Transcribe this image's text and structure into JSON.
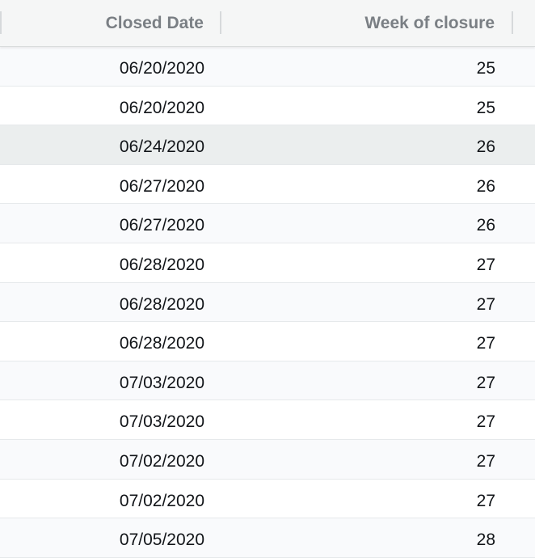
{
  "table": {
    "columns": [
      {
        "label": "Closed Date"
      },
      {
        "label": "Week of closure"
      }
    ],
    "rows": [
      {
        "closed_date": "06/20/2020",
        "week": "25",
        "style": "alt"
      },
      {
        "closed_date": "06/20/2020",
        "week": "25",
        "style": "plain"
      },
      {
        "closed_date": "06/24/2020",
        "week": "26",
        "style": "hover"
      },
      {
        "closed_date": "06/27/2020",
        "week": "26",
        "style": "plain"
      },
      {
        "closed_date": "06/27/2020",
        "week": "26",
        "style": "alt"
      },
      {
        "closed_date": "06/28/2020",
        "week": "27",
        "style": "plain"
      },
      {
        "closed_date": "06/28/2020",
        "week": "27",
        "style": "alt"
      },
      {
        "closed_date": "06/28/2020",
        "week": "27",
        "style": "plain"
      },
      {
        "closed_date": "07/03/2020",
        "week": "27",
        "style": "alt"
      },
      {
        "closed_date": "07/03/2020",
        "week": "27",
        "style": "plain"
      },
      {
        "closed_date": "07/02/2020",
        "week": "27",
        "style": "alt"
      },
      {
        "closed_date": "07/02/2020",
        "week": "27",
        "style": "plain"
      },
      {
        "closed_date": "07/05/2020",
        "week": "28",
        "style": "alt"
      }
    ]
  },
  "colors": {
    "header_bg": "#f5f6f6",
    "header_text": "#7a7f84",
    "row_alt_bg": "#f9fafc",
    "row_hover_bg": "#ebeeee",
    "cell_text": "#111418"
  }
}
